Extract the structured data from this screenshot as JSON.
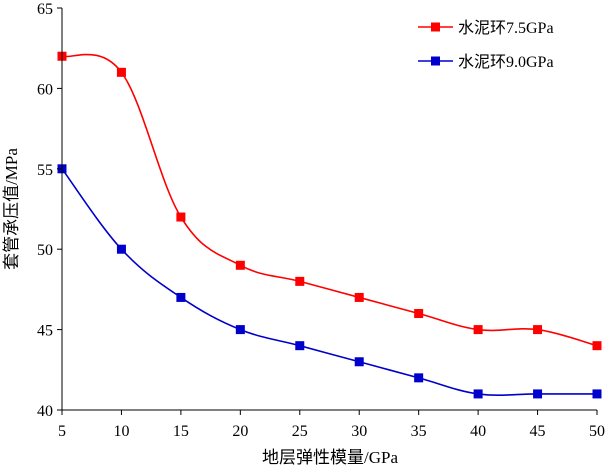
{
  "chart_data": {
    "type": "line",
    "title": "",
    "xlabel": "地层弹性模量/GPa",
    "ylabel": "套管承压值/MPa",
    "x": [
      5,
      10,
      15,
      20,
      25,
      30,
      35,
      40,
      45,
      50
    ],
    "xlim": [
      5,
      50
    ],
    "ylim": [
      40,
      65
    ],
    "xticks": [
      "5",
      "10",
      "15",
      "20",
      "25",
      "30",
      "35",
      "40",
      "45",
      "50"
    ],
    "yticks": [
      "40",
      "45",
      "50",
      "55",
      "60",
      "65"
    ],
    "grid": false,
    "legend_position": "top-right",
    "series": [
      {
        "name": "水泥环7.5GPa",
        "color": "#ff0000",
        "marker": "square",
        "values": [
          62,
          61,
          52,
          49,
          48,
          47,
          46,
          45,
          45,
          44
        ]
      },
      {
        "name": "水泥环9.0GPa",
        "color": "#0000cc",
        "marker": "square",
        "values": [
          55,
          50,
          47,
          45,
          44,
          43,
          42,
          41,
          41,
          41
        ]
      }
    ]
  }
}
